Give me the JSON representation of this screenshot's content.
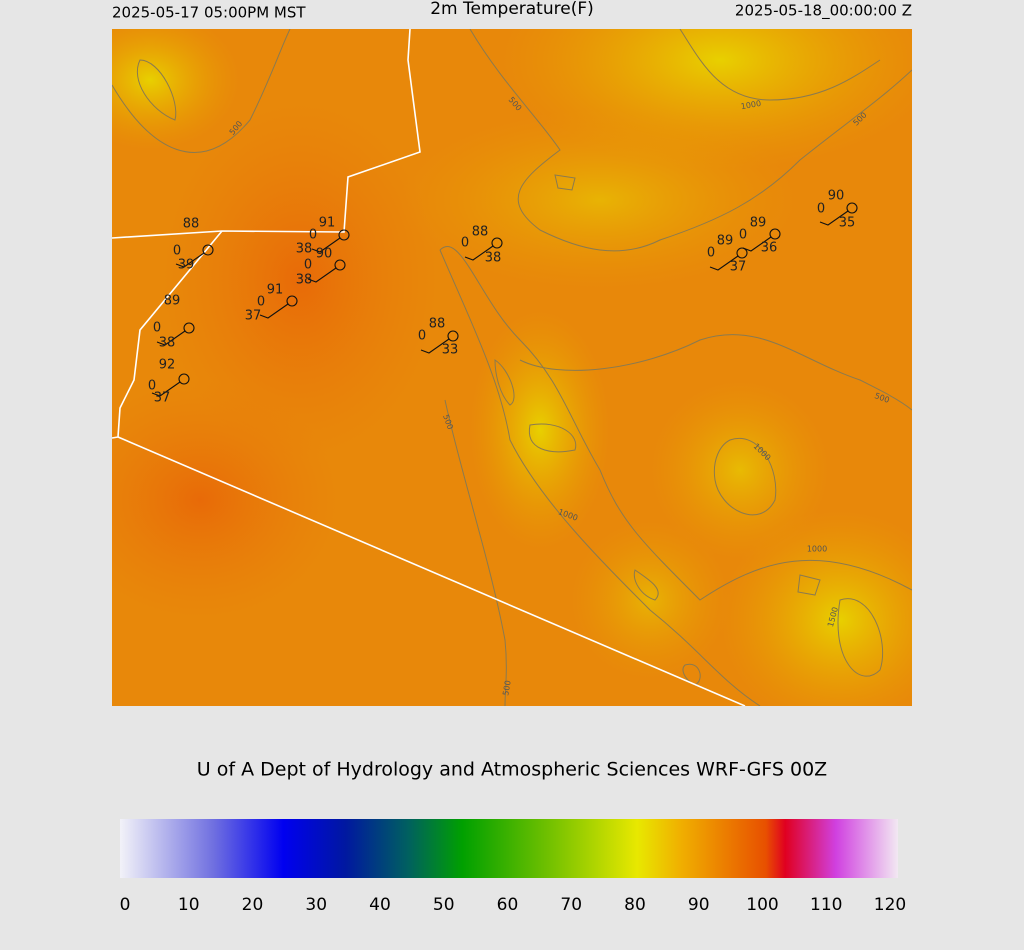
{
  "header": {
    "left": "2025-05-17 05:00PM MST",
    "title": "2m Temperature(F)",
    "right": "2025-05-18_00:00:00 Z"
  },
  "stations": [
    {
      "temperature": 88,
      "cloud": 0,
      "dewpoint": 39
    },
    {
      "temperature": 91,
      "cloud": 0,
      "dewpoint": 38
    },
    {
      "temperature": 90,
      "cloud": 0,
      "dewpoint": 38
    },
    {
      "temperature": 91,
      "cloud": 0,
      "dewpoint": 37
    },
    {
      "temperature": 89,
      "cloud": 0,
      "dewpoint": 38
    },
    {
      "temperature": 92,
      "cloud": 0,
      "dewpoint": 37
    },
    {
      "temperature": 88,
      "cloud": 0,
      "dewpoint": 38
    },
    {
      "temperature": 88,
      "cloud": 0,
      "dewpoint": 33
    },
    {
      "temperature": 89,
      "cloud": 0,
      "dewpoint": 37
    },
    {
      "temperature": 89,
      "cloud": 0,
      "dewpoint": 36
    },
    {
      "temperature": 90,
      "cloud": 0,
      "dewpoint": 35
    }
  ],
  "contour_labels": [
    500,
    500,
    1000,
    500,
    500,
    500,
    1000,
    1000,
    1000,
    1500,
    500
  ],
  "credit": "U of A Dept of Hydrology and Atmospheric Sciences WRF-GFS 00Z",
  "colorbar": {
    "ticks": [
      0,
      10,
      20,
      30,
      40,
      50,
      60,
      70,
      80,
      90,
      100,
      110,
      120
    ]
  }
}
